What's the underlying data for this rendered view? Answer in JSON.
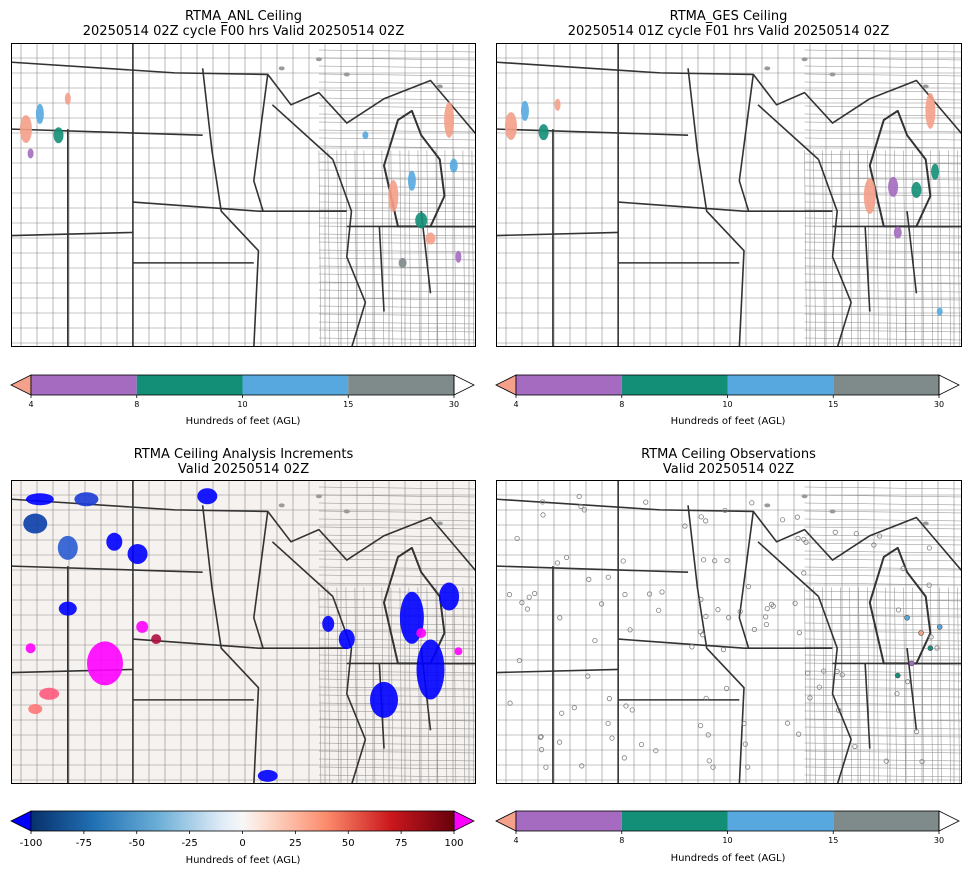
{
  "panels": [
    {
      "id": "anl",
      "title_line1": "RTMA_ANL Ceiling",
      "title_line2": "20250514 02Z cycle F00 hrs Valid 20250514 02Z"
    },
    {
      "id": "ges",
      "title_line1": "RTMA_GES Ceiling",
      "title_line2": "20250514 01Z cycle F01 hrs Valid 20250514 02Z"
    },
    {
      "id": "inc",
      "title_line1": "RTMA Ceiling Analysis Increments",
      "title_line2": "Valid 20250514 02Z"
    },
    {
      "id": "obs",
      "title_line1": "RTMA Ceiling Observations",
      "title_line2": "Valid 20250514 02Z"
    }
  ],
  "colorbars": {
    "ceiling": {
      "label": "Hundreds of feet (AGL)",
      "ticks": [
        "4",
        "8",
        "10",
        "15",
        "30"
      ],
      "under_color": "#f4a08a",
      "over_color": "#ffffff",
      "bins": [
        {
          "from": "4",
          "to": "8",
          "color": "#a46bc0"
        },
        {
          "from": "8",
          "to": "10",
          "color": "#138f78"
        },
        {
          "from": "10",
          "to": "15",
          "color": "#58a8e0"
        },
        {
          "from": "15",
          "to": "30",
          "color": "#7f8a8a"
        }
      ]
    },
    "increment": {
      "label": "Hundreds of feet (AGL)",
      "ticks": [
        "-100",
        "-75",
        "-50",
        "-25",
        "0",
        "25",
        "50",
        "75",
        "100"
      ],
      "under_color": "#0000ff",
      "over_color": "#ff00ff",
      "range": [
        -100,
        100
      ]
    }
  }
}
